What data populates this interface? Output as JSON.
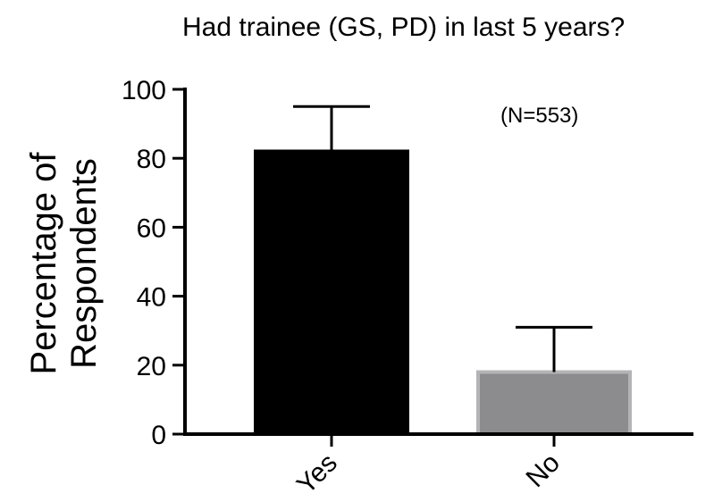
{
  "chart_data": {
    "type": "bar",
    "title": "Had trainee (GS, PD) in last 5 years?",
    "ylabel_lines": [
      "Percentage of",
      "Respondents"
    ],
    "xlabel": "",
    "categories": [
      "Yes",
      "No"
    ],
    "values": [
      82,
      18
    ],
    "error_upper": [
      95,
      31
    ],
    "bar_colors": [
      "#000000",
      "#8c8c8e"
    ],
    "ylim": [
      0,
      100
    ],
    "yticks": [
      "0",
      "20",
      "40",
      "60",
      "80",
      "100"
    ],
    "annotation": "(N=553)",
    "grid": false,
    "legend": "none"
  }
}
